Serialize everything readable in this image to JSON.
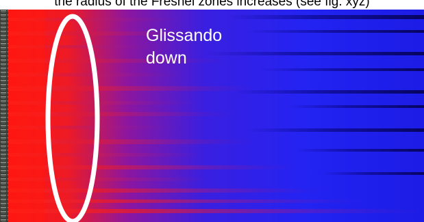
{
  "caption": "the radius of the Fresnel zones increases (see fig. xyz)",
  "annotation": {
    "line1": "Glissando",
    "line2": "down"
  },
  "colors": {
    "red": "#ff1a14",
    "blue": "#1f1ff5",
    "dark_blue": "#05036a",
    "white": "#ffffff",
    "black": "#000000"
  }
}
